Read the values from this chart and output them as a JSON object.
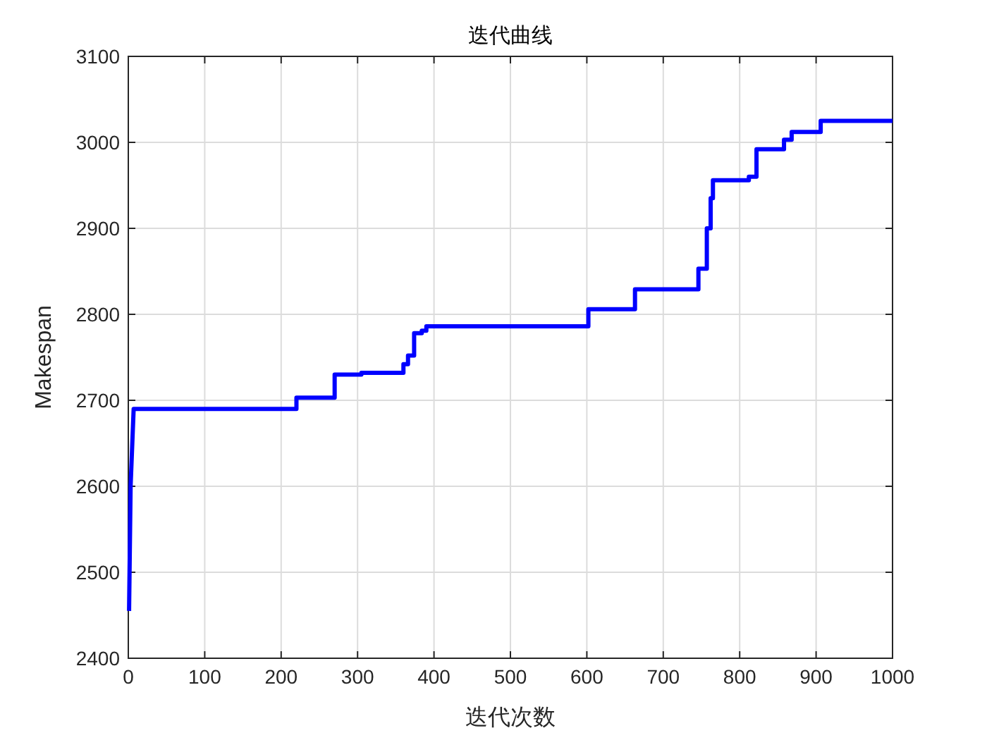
{
  "chart_data": {
    "type": "line",
    "title": "迭代曲线",
    "xlabel": "迭代次数",
    "ylabel": "Makespan",
    "x": [
      1,
      3,
      7,
      220,
      220,
      270,
      270,
      305,
      305,
      360,
      360,
      366,
      366,
      374,
      374,
      384,
      384,
      390,
      390,
      602,
      602,
      663,
      663,
      746,
      746,
      757,
      757,
      762,
      762,
      765,
      765,
      812,
      812,
      822,
      822,
      858,
      858,
      868,
      868,
      906,
      906,
      1000
    ],
    "series": [
      {
        "color": "#0000ff",
        "values": [
          2455,
          2600,
          2690,
          2690,
          2703,
          2703,
          2730,
          2730,
          2732,
          2732,
          2742,
          2742,
          2752,
          2752,
          2778,
          2778,
          2781,
          2781,
          2786,
          2786,
          2806,
          2806,
          2829,
          2829,
          2853,
          2853,
          2900,
          2900,
          2935,
          2935,
          2956,
          2956,
          2960,
          2960,
          2992,
          2992,
          3003,
          3003,
          3012,
          3012,
          3025,
          3025
        ]
      }
    ],
    "xlim": [
      0,
      1000
    ],
    "xticks": [
      0,
      100,
      200,
      300,
      400,
      500,
      600,
      700,
      800,
      900,
      1000
    ],
    "ylim": [
      2400,
      3100
    ],
    "yticks": [
      2400,
      2500,
      2600,
      2700,
      2800,
      2900,
      3000,
      3100
    ],
    "grid": true,
    "marker": "none",
    "line_style": "solid"
  }
}
